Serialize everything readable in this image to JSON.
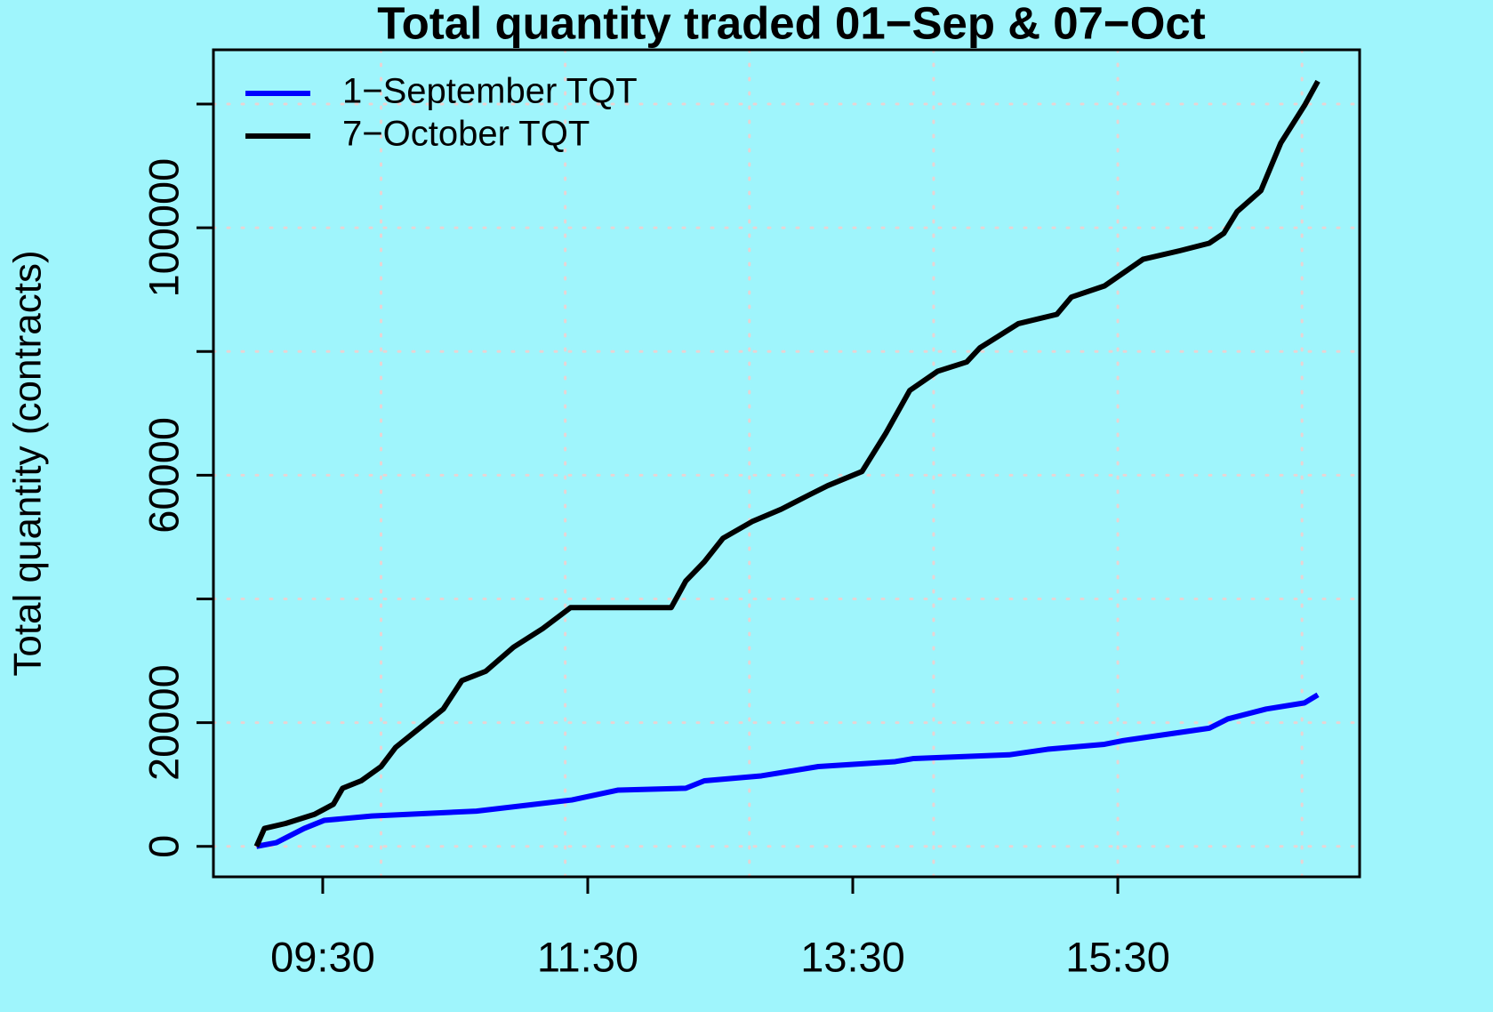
{
  "chart_data": {
    "type": "line",
    "title": "Total quantity traded 01−Sep & 07−Oct",
    "y_label": "Total quantity (contracts)",
    "xlim": [
      8.675,
      17.325
    ],
    "xticks": [
      {
        "value": 9.5,
        "label": "09:30"
      },
      {
        "value": 11.5,
        "label": "11:30"
      },
      {
        "value": 13.5,
        "label": "13:30"
      },
      {
        "value": 15.5,
        "label": "15:30"
      }
    ],
    "xgrid": [
      9.94,
      11.33,
      12.72,
      14.11,
      15.5,
      16.89
    ],
    "ylim": [
      -4923,
      128769
    ],
    "yticks": [
      0,
      20000,
      {
        "value": 40000,
        "label": null
      },
      60000,
      {
        "value": 80000,
        "label": null
      },
      100000,
      {
        "value": 120000,
        "label": null
      }
    ],
    "grid": true,
    "legend": "top-left",
    "series": [
      {
        "name": "1−September TQT",
        "color": "#0000ff",
        "x": [
          9.0,
          9.15,
          9.36,
          9.51,
          9.87,
          10.66,
          11.38,
          11.73,
          12.24,
          12.38,
          12.81,
          13.24,
          13.82,
          13.96,
          14.68,
          14.97,
          15.4,
          15.54,
          16.19,
          16.33,
          16.62,
          16.91,
          17.01
        ],
        "values": [
          0,
          600,
          2900,
          4200,
          4900,
          5700,
          7500,
          9100,
          9400,
          10600,
          11400,
          12900,
          13700,
          14200,
          14800,
          15700,
          16500,
          17100,
          19100,
          20600,
          22200,
          23200,
          24500
        ]
      },
      {
        "name": "7−October TQT",
        "color": "#000000",
        "x": [
          9.0,
          9.06,
          9.22,
          9.44,
          9.58,
          9.65,
          9.79,
          9.94,
          10.05,
          10.23,
          10.41,
          10.55,
          10.73,
          10.94,
          11.16,
          11.37,
          12.13,
          12.24,
          12.38,
          12.52,
          12.74,
          12.96,
          13.17,
          13.31,
          13.57,
          13.75,
          13.93,
          14.14,
          14.36,
          14.46,
          14.75,
          15.04,
          15.15,
          15.4,
          15.69,
          15.97,
          16.19,
          16.3,
          16.4,
          16.58,
          16.73,
          16.91,
          17.01
        ],
        "values": [
          0,
          2900,
          3700,
          5200,
          6800,
          9400,
          10600,
          12900,
          16000,
          19100,
          22200,
          26800,
          28300,
          32200,
          35200,
          38600,
          38600,
          42900,
          46000,
          49800,
          52500,
          54500,
          56800,
          58300,
          60600,
          66800,
          73700,
          76800,
          78300,
          80600,
          84500,
          86000,
          88800,
          90600,
          94900,
          96300,
          97500,
          99100,
          102600,
          106000,
          113700,
          119800,
          123700
        ]
      }
    ]
  }
}
